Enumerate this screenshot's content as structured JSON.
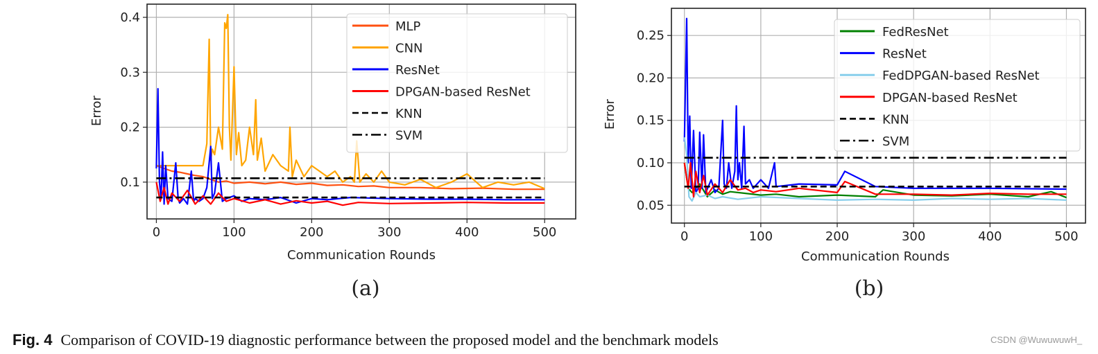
{
  "chart_data": [
    {
      "type": "line",
      "subcaption": "(a)",
      "xlabel": "Communication Rounds",
      "ylabel": "Error",
      "xlim": [
        -12,
        540
      ],
      "ylim": [
        0.033,
        0.424
      ],
      "xticks": [
        0,
        100,
        200,
        300,
        400,
        500
      ],
      "yticks": [
        0.1,
        0.2,
        0.3,
        0.4
      ],
      "ytick_labels": [
        "0.1",
        "0.2",
        "0.3",
        "0.4"
      ],
      "grid": true,
      "legend_position": "top-right",
      "series": [
        {
          "name": "MLP",
          "color": "#ff5010",
          "style": "solid",
          "x": [
            0,
            10,
            20,
            30,
            40,
            50,
            60,
            70,
            80,
            90,
            100,
            120,
            140,
            160,
            180,
            200,
            220,
            240,
            260,
            280,
            300,
            340,
            380,
            420,
            460,
            500
          ],
          "y": [
            0.13,
            0.125,
            0.12,
            0.118,
            0.115,
            0.112,
            0.11,
            0.105,
            0.1,
            0.102,
            0.098,
            0.1,
            0.097,
            0.1,
            0.096,
            0.098,
            0.094,
            0.095,
            0.092,
            0.093,
            0.09,
            0.09,
            0.088,
            0.089,
            0.087,
            0.087
          ]
        },
        {
          "name": "CNN",
          "color": "#ffa500",
          "style": "solid",
          "x": [
            0,
            20,
            40,
            60,
            65,
            68,
            70,
            72,
            75,
            80,
            85,
            88,
            90,
            92,
            94,
            96,
            100,
            103,
            106,
            110,
            115,
            120,
            125,
            128,
            130,
            135,
            140,
            150,
            160,
            170,
            172,
            175,
            180,
            190,
            200,
            210,
            220,
            230,
            240,
            250,
            255,
            258,
            262,
            270,
            280,
            290,
            300,
            320,
            340,
            360,
            380,
            400,
            420,
            440,
            460,
            480,
            500
          ],
          "y": [
            0.13,
            0.13,
            0.13,
            0.13,
            0.17,
            0.36,
            0.14,
            0.16,
            0.15,
            0.2,
            0.16,
            0.39,
            0.38,
            0.405,
            0.2,
            0.14,
            0.31,
            0.15,
            0.19,
            0.13,
            0.14,
            0.2,
            0.15,
            0.25,
            0.14,
            0.18,
            0.12,
            0.15,
            0.13,
            0.12,
            0.2,
            0.11,
            0.14,
            0.11,
            0.13,
            0.12,
            0.11,
            0.12,
            0.1,
            0.11,
            0.1,
            0.175,
            0.1,
            0.115,
            0.1,
            0.12,
            0.1,
            0.095,
            0.105,
            0.09,
            0.1,
            0.115,
            0.09,
            0.1,
            0.095,
            0.1,
            0.088
          ]
        },
        {
          "name": "ResNet",
          "color": "#0000ff",
          "style": "solid",
          "x": [
            0,
            2,
            4,
            6,
            8,
            10,
            12,
            15,
            20,
            25,
            28,
            30,
            35,
            40,
            45,
            48,
            50,
            55,
            60,
            65,
            70,
            72,
            75,
            80,
            85,
            90,
            100,
            110,
            120,
            140,
            160,
            180,
            200,
            220,
            250,
            300,
            350,
            400,
            450,
            500
          ],
          "y": [
            0.125,
            0.27,
            0.1,
            0.07,
            0.155,
            0.06,
            0.13,
            0.07,
            0.065,
            0.135,
            0.07,
            0.062,
            0.07,
            0.06,
            0.12,
            0.065,
            0.07,
            0.065,
            0.07,
            0.09,
            0.165,
            0.07,
            0.08,
            0.135,
            0.065,
            0.07,
            0.075,
            0.065,
            0.07,
            0.068,
            0.072,
            0.062,
            0.07,
            0.068,
            0.072,
            0.07,
            0.069,
            0.069,
            0.068,
            0.068
          ]
        },
        {
          "name": "DPGAN-based ResNet",
          "color": "#ff0000",
          "style": "solid",
          "x": [
            0,
            5,
            10,
            15,
            20,
            30,
            40,
            50,
            60,
            70,
            80,
            90,
            100,
            120,
            140,
            160,
            180,
            200,
            220,
            240,
            260,
            300,
            350,
            400,
            450,
            500
          ],
          "y": [
            0.1,
            0.065,
            0.09,
            0.06,
            0.08,
            0.065,
            0.085,
            0.06,
            0.075,
            0.06,
            0.08,
            0.065,
            0.07,
            0.062,
            0.068,
            0.06,
            0.066,
            0.062,
            0.065,
            0.058,
            0.063,
            0.061,
            0.062,
            0.063,
            0.062,
            0.062
          ]
        },
        {
          "name": "KNN",
          "color": "#000000",
          "style": "dashed",
          "x": [
            0,
            500
          ],
          "y": [
            0.072,
            0.072
          ]
        },
        {
          "name": "SVM",
          "color": "#000000",
          "style": "dashdot",
          "x": [
            0,
            500
          ],
          "y": [
            0.107,
            0.107
          ]
        }
      ]
    },
    {
      "type": "line",
      "subcaption": "(b)",
      "xlabel": "Communication Rounds",
      "ylabel": "Error",
      "xlim": [
        -17,
        525
      ],
      "ylim": [
        0.029,
        0.282
      ],
      "xticks": [
        0,
        100,
        200,
        300,
        400,
        500
      ],
      "yticks": [
        0.05,
        0.1,
        0.15,
        0.2,
        0.25
      ],
      "ytick_labels": [
        "0.05",
        "0.10",
        "0.15",
        "0.20",
        "0.25"
      ],
      "grid": true,
      "legend_position": "top-right",
      "series": [
        {
          "name": "FedResNet",
          "color": "#008000",
          "style": "solid",
          "x": [
            0,
            5,
            10,
            20,
            30,
            40,
            50,
            60,
            80,
            100,
            120,
            150,
            200,
            250,
            260,
            300,
            350,
            400,
            450,
            480,
            500
          ],
          "y": [
            0.1,
            0.07,
            0.065,
            0.075,
            0.06,
            0.068,
            0.063,
            0.066,
            0.064,
            0.062,
            0.063,
            0.06,
            0.062,
            0.06,
            0.068,
            0.062,
            0.061,
            0.063,
            0.06,
            0.066,
            0.059
          ]
        },
        {
          "name": "ResNet",
          "color": "#0000ff",
          "style": "solid",
          "x": [
            0,
            3,
            5,
            7,
            9,
            12,
            15,
            18,
            20,
            23,
            25,
            28,
            35,
            40,
            45,
            50,
            52,
            55,
            58,
            62,
            66,
            68,
            70,
            72,
            75,
            78,
            80,
            85,
            90,
            100,
            110,
            118,
            120,
            150,
            200,
            210,
            250,
            300,
            400,
            500
          ],
          "y": [
            0.125,
            0.27,
            0.1,
            0.155,
            0.07,
            0.138,
            0.065,
            0.07,
            0.136,
            0.07,
            0.133,
            0.065,
            0.08,
            0.065,
            0.07,
            0.15,
            0.075,
            0.07,
            0.1,
            0.07,
            0.09,
            0.167,
            0.08,
            0.1,
            0.07,
            0.143,
            0.075,
            0.08,
            0.07,
            0.08,
            0.07,
            0.1,
            0.072,
            0.075,
            0.074,
            0.09,
            0.072,
            0.07,
            0.07,
            0.069
          ]
        },
        {
          "name": "FedDPGAN-based ResNet",
          "color": "#87ceeb",
          "style": "solid",
          "x": [
            0,
            3,
            6,
            10,
            15,
            20,
            30,
            40,
            50,
            70,
            100,
            150,
            200,
            250,
            300,
            350,
            400,
            450,
            500
          ],
          "y": [
            0.13,
            0.11,
            0.06,
            0.055,
            0.065,
            0.06,
            0.062,
            0.058,
            0.06,
            0.057,
            0.06,
            0.058,
            0.056,
            0.057,
            0.056,
            0.058,
            0.057,
            0.058,
            0.056
          ]
        },
        {
          "name": "DPGAN-based ResNet",
          "color": "#ff0000",
          "style": "solid",
          "x": [
            0,
            5,
            8,
            12,
            15,
            20,
            25,
            30,
            40,
            50,
            60,
            70,
            80,
            90,
            100,
            120,
            150,
            200,
            210,
            250,
            300,
            350,
            400,
            450,
            500
          ],
          "y": [
            0.1,
            0.07,
            0.1,
            0.06,
            0.09,
            0.065,
            0.085,
            0.062,
            0.075,
            0.065,
            0.08,
            0.068,
            0.07,
            0.065,
            0.068,
            0.066,
            0.07,
            0.065,
            0.078,
            0.063,
            0.063,
            0.062,
            0.064,
            0.063,
            0.063
          ]
        },
        {
          "name": "KNN",
          "color": "#000000",
          "style": "dashed",
          "x": [
            0,
            500
          ],
          "y": [
            0.072,
            0.072
          ]
        },
        {
          "name": "SVM",
          "color": "#000000",
          "style": "dashdot",
          "x": [
            0,
            500
          ],
          "y": [
            0.106,
            0.106
          ]
        }
      ]
    }
  ],
  "caption": {
    "label": "Fig. 4",
    "text": "Comparison of COVID-19 diagnostic performance between the proposed model and the benchmark models"
  },
  "watermark": "CSDN @WuwuwuwH_"
}
